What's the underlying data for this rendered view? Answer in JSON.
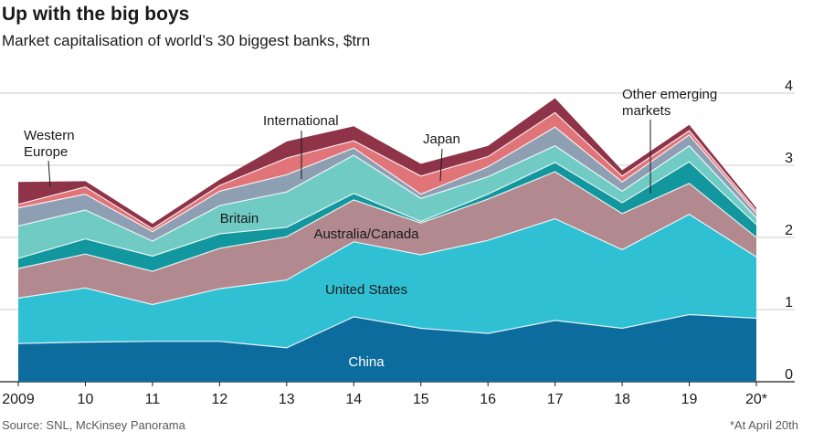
{
  "title": "Up with the big boys",
  "subtitle": "Market capitalisation of world’s 30 biggest banks, $trn",
  "source": "Source: SNL, McKinsey Panorama",
  "footnote": "*At April 20th",
  "chart_data": {
    "type": "area",
    "stacked": true,
    "title": "Up with the big boys",
    "subtitle": "Market capitalisation of world’s 30 biggest banks, $trn",
    "xlabel": "",
    "ylabel": "$trn",
    "categories": [
      "2009",
      "10",
      "11",
      "12",
      "13",
      "14",
      "15",
      "16",
      "17",
      "18",
      "19",
      "20*"
    ],
    "ylim": [
      0,
      4
    ],
    "yticks": [
      "0",
      "1",
      "2",
      "3",
      "4"
    ],
    "grid": true,
    "series": [
      {
        "name": "China",
        "color": "#0d6c9e",
        "text_color": "#ffffff",
        "values": [
          0.53,
          0.55,
          0.56,
          0.56,
          0.47,
          0.9,
          0.74,
          0.67,
          0.85,
          0.74,
          0.93,
          0.88
        ]
      },
      {
        "name": "United States",
        "color": "#2fc0d4",
        "text_color": "#1a1a1a",
        "values": [
          0.63,
          0.75,
          0.51,
          0.73,
          0.94,
          1.04,
          1.02,
          1.29,
          1.41,
          1.09,
          1.39,
          0.85
        ]
      },
      {
        "name": "Australia/Canada",
        "color": "#b1898f",
        "text_color": "#1a1a1a",
        "values": [
          0.41,
          0.47,
          0.46,
          0.56,
          0.6,
          0.58,
          0.44,
          0.57,
          0.65,
          0.5,
          0.43,
          0.27
        ]
      },
      {
        "name": "Other emerging markets",
        "color": "#12979e",
        "text_color": "#1a1a1a",
        "values": [
          0.14,
          0.21,
          0.21,
          0.2,
          0.13,
          0.09,
          0.02,
          0.07,
          0.13,
          0.15,
          0.3,
          0.18
        ]
      },
      {
        "name": "Britain",
        "color": "#6fcbc4",
        "text_color": "#1a1a1a",
        "values": [
          0.45,
          0.4,
          0.21,
          0.39,
          0.49,
          0.53,
          0.32,
          0.24,
          0.23,
          0.16,
          0.22,
          0.09
        ]
      },
      {
        "name": "Western Europe",
        "color": "#8f9fb3",
        "text_color": "#1a1a1a",
        "values": [
          0.25,
          0.22,
          0.13,
          0.2,
          0.24,
          0.1,
          0.06,
          0.14,
          0.26,
          0.13,
          0.15,
          0.06
        ]
      },
      {
        "name": "Japan",
        "color": "#e07478",
        "text_color": "#1a1a1a",
        "values": [
          0.05,
          0.1,
          0.04,
          0.08,
          0.23,
          0.1,
          0.25,
          0.14,
          0.2,
          0.08,
          0.06,
          0.04
        ]
      },
      {
        "name": "International",
        "color": "#8f3448",
        "text_color": "#1a1a1a",
        "values": [
          0.31,
          0.08,
          0.07,
          0.08,
          0.23,
          0.2,
          0.17,
          0.15,
          0.2,
          0.08,
          0.08,
          0.04
        ]
      }
    ],
    "labels": {
      "china": "China",
      "united_states": "United States",
      "australia_canada": "Australia/Canada",
      "britain": "Britain",
      "western_europe": [
        "Western",
        "Europe"
      ],
      "international": "International",
      "japan": "Japan",
      "other_emerging": [
        "Other emerging",
        "markets"
      ]
    }
  }
}
